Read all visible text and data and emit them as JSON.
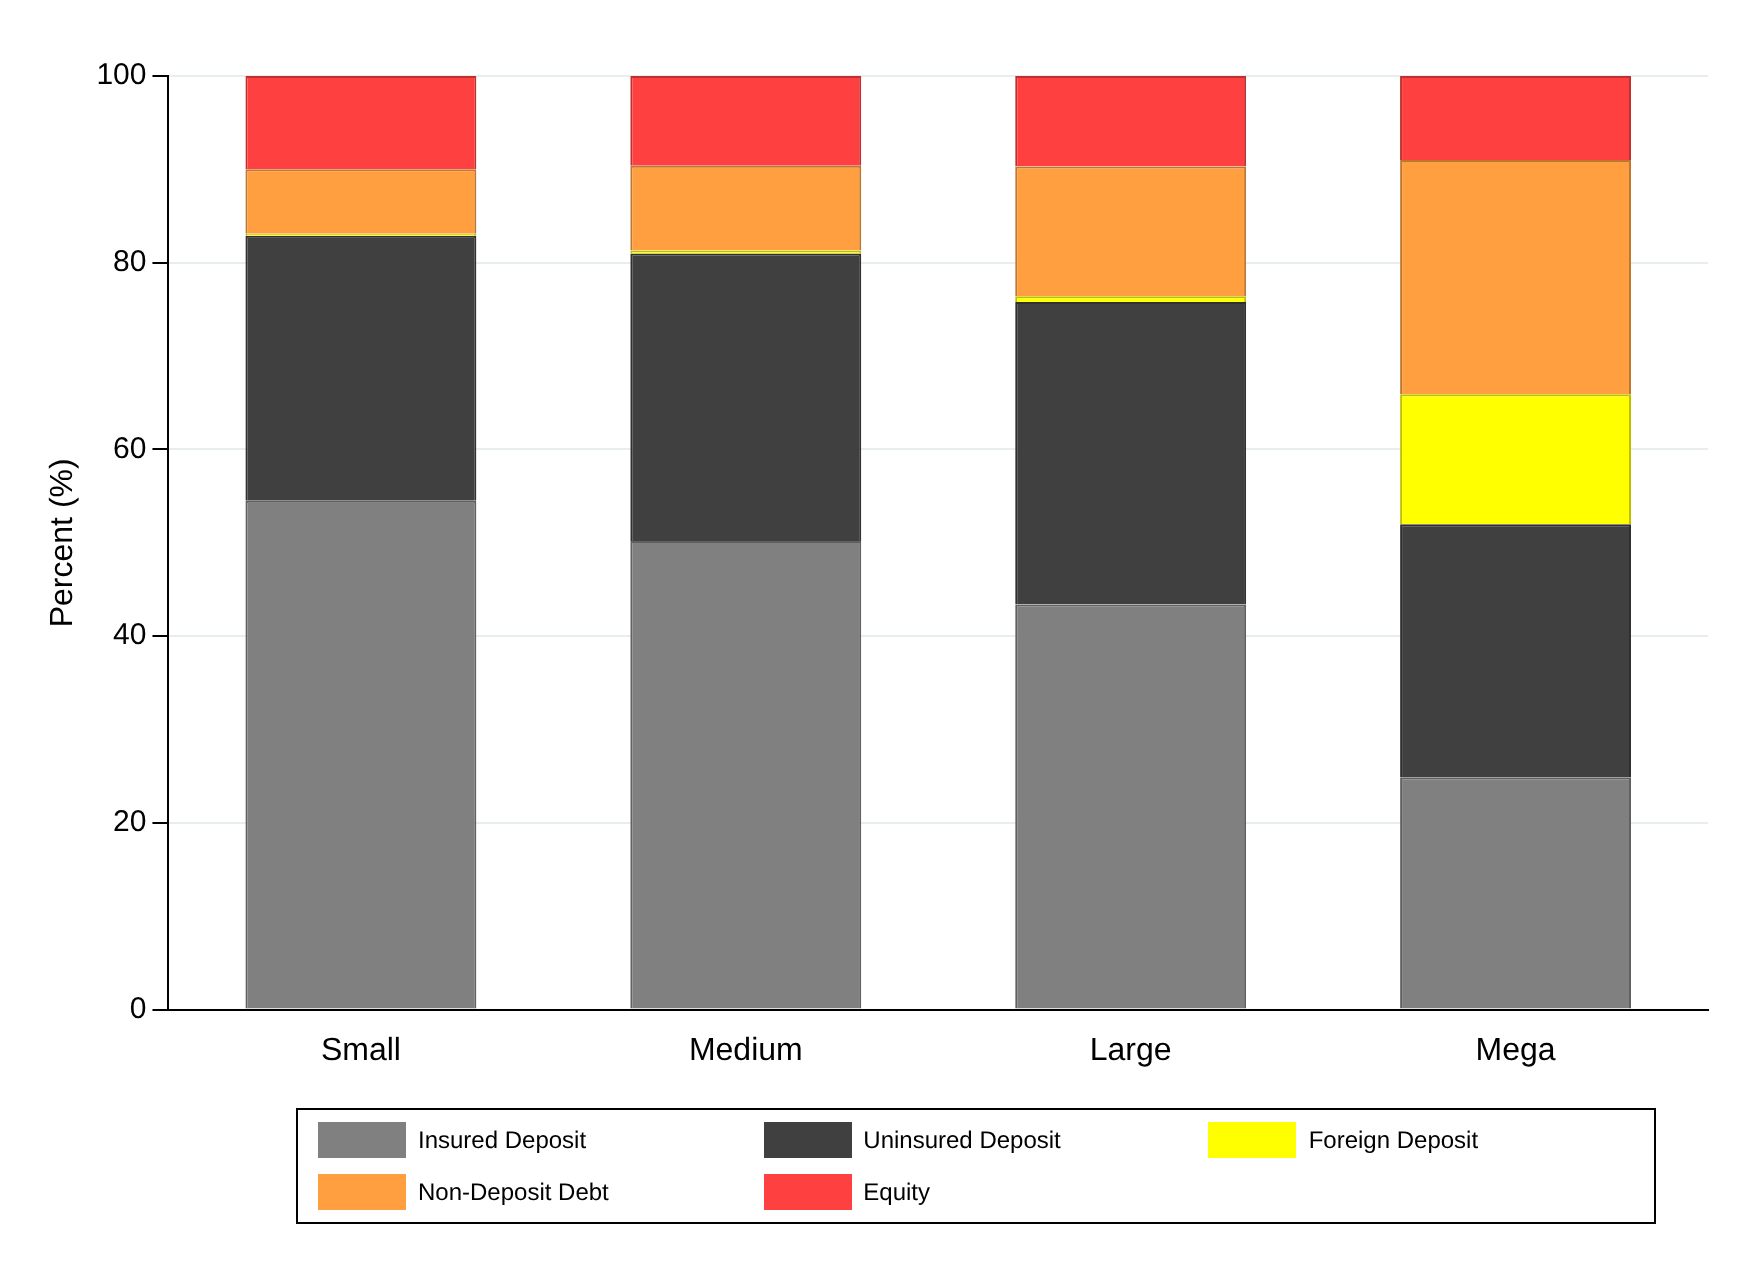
{
  "chart_data": {
    "type": "bar",
    "stacked": true,
    "ylabel": "Percent (%)",
    "categories": [
      "Small",
      "Medium",
      "Large",
      "Mega"
    ],
    "series": [
      {
        "name": "Insured Deposit",
        "color": "#808080",
        "values": [
          54.5,
          50.2,
          43.4,
          24.9
        ]
      },
      {
        "name": "Uninsured Deposit",
        "color": "#404040",
        "values": [
          28.4,
          30.8,
          32.4,
          27.1
        ]
      },
      {
        "name": "Foreign Deposit",
        "color": "#ffff00",
        "values": [
          0.2,
          0.3,
          0.6,
          13.9
        ]
      },
      {
        "name": "Non-Deposit Debt",
        "color": "#ff9f40",
        "values": [
          6.9,
          9.1,
          13.9,
          25.1
        ]
      },
      {
        "name": "Equity",
        "color": "#ff4040",
        "values": [
          10.0,
          9.6,
          9.7,
          9.0
        ]
      }
    ],
    "ylim": [
      0,
      100
    ],
    "yticks": [
      0,
      20,
      40,
      60,
      80,
      100
    ],
    "grid": "y",
    "legend": "bottom"
  }
}
